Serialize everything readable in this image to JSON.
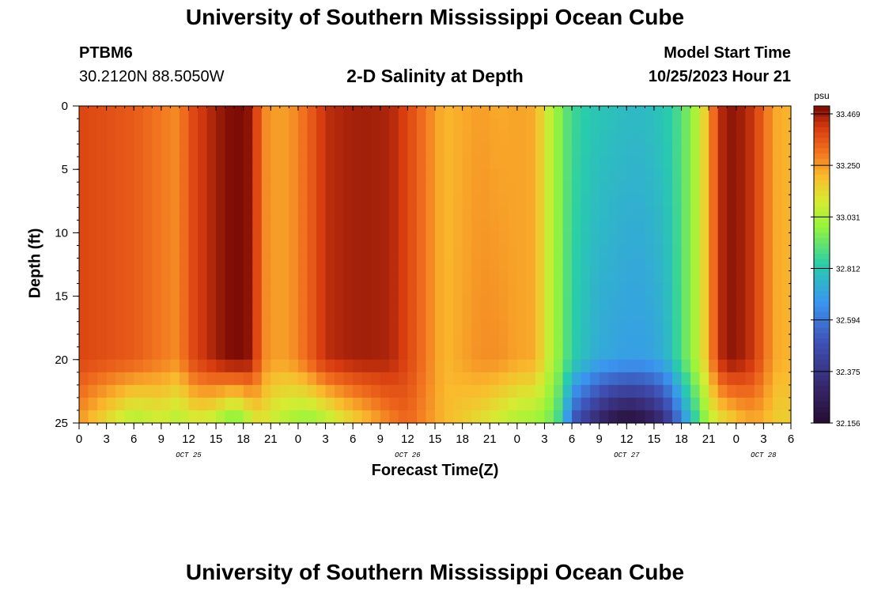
{
  "header": {
    "title": "University of Southern Mississippi Ocean Cube",
    "station_id": "PTBM6",
    "coordinates": "30.2120N  88.5050W",
    "subtitle": "2-D Salinity at Depth",
    "model_start_label": "Model Start Time",
    "model_start_value": "10/25/2023 Hour 21"
  },
  "footer": {
    "title": "University of Southern Mississippi Ocean Cube"
  },
  "chart_data": {
    "type": "heatmap",
    "title": "2-D Salinity at Depth",
    "xlabel": "Forecast Time(Z)",
    "ylabel": "Depth (ft)",
    "x_tick_labels": [
      "0",
      "3",
      "6",
      "9",
      "12",
      "15",
      "18",
      "21",
      "0",
      "3",
      "6",
      "9",
      "12",
      "15",
      "18",
      "21",
      "0",
      "3",
      "6",
      "9",
      "12",
      "15",
      "18",
      "21",
      "0",
      "3",
      "6"
    ],
    "x_range_hours": [
      0,
      78
    ],
    "date_labels": [
      {
        "label": "OCT 25",
        "hour": 12
      },
      {
        "label": "OCT 26",
        "hour": 36
      },
      {
        "label": "OCT 27",
        "hour": 60
      },
      {
        "label": "OCT 28",
        "hour": 75
      }
    ],
    "y_tick_labels": [
      "0",
      "5",
      "10",
      "15",
      "20",
      "25"
    ],
    "y_range_ft": [
      0,
      25
    ],
    "colorbar": {
      "unit": "psu",
      "tick_labels": [
        "33.469",
        "33.250",
        "33.031",
        "32.812",
        "32.594",
        "32.375",
        "32.156"
      ],
      "min": 32.156,
      "max": 33.469
    },
    "time_hours": [
      0,
      3,
      6,
      9,
      11,
      12,
      14,
      15,
      16,
      17,
      18,
      19,
      20,
      21,
      23,
      25,
      27,
      29,
      31,
      34,
      36,
      40,
      44,
      46,
      48,
      50,
      51,
      52,
      53,
      54,
      56,
      57,
      58,
      59,
      60,
      61,
      62,
      63,
      64,
      65,
      66,
      67,
      68,
      69,
      70,
      71,
      72,
      73,
      74,
      75,
      76,
      77,
      78
    ],
    "surface_salinity": [
      33.36,
      33.34,
      33.32,
      33.27,
      33.24,
      33.34,
      33.4,
      33.43,
      33.45,
      33.47,
      33.46,
      33.44,
      33.27,
      33.22,
      33.22,
      33.3,
      33.4,
      33.42,
      33.43,
      33.42,
      33.36,
      33.18,
      33.22,
      33.2,
      33.21,
      33.2,
      33.09,
      33.0,
      32.92,
      32.85,
      32.8,
      32.79,
      32.78,
      32.77,
      32.76,
      32.76,
      32.76,
      32.78,
      32.79,
      32.83,
      32.88,
      32.95,
      33.05,
      33.2,
      33.38,
      33.45,
      33.44,
      33.42,
      33.38,
      33.3,
      33.22,
      33.18,
      33.2
    ],
    "near_bottom_salinity_20ft": [
      33.36,
      33.34,
      33.32,
      33.27,
      33.24,
      33.34,
      33.4,
      33.43,
      33.45,
      33.47,
      33.46,
      33.44,
      33.27,
      33.22,
      33.22,
      33.3,
      33.4,
      33.42,
      33.43,
      33.42,
      33.36,
      33.18,
      33.24,
      33.24,
      33.21,
      33.2,
      33.09,
      33.0,
      32.92,
      32.82,
      32.74,
      32.71,
      32.7,
      32.69,
      32.68,
      32.68,
      32.68,
      32.7,
      32.72,
      32.78,
      32.88,
      32.95,
      33.05,
      33.2,
      33.38,
      33.45,
      33.44,
      33.42,
      33.38,
      33.3,
      33.22,
      33.18,
      33.2
    ],
    "bottom_salinity_25ft": [
      33.22,
      33.1,
      33.0,
      33.05,
      33.0,
      33.05,
      33.05,
      33.0,
      32.95,
      32.9,
      32.95,
      33.05,
      33.1,
      33.05,
      33.0,
      32.95,
      33.0,
      33.08,
      33.15,
      33.25,
      33.3,
      33.18,
      33.1,
      33.05,
      33.0,
      32.98,
      32.95,
      32.9,
      32.8,
      32.5,
      32.35,
      32.28,
      32.22,
      32.18,
      32.16,
      32.17,
      32.2,
      32.25,
      32.32,
      32.45,
      32.6,
      32.75,
      32.88,
      33.0,
      33.08,
      33.1,
      33.15,
      33.18,
      33.2,
      33.18,
      33.15,
      33.12,
      33.15
    ]
  }
}
